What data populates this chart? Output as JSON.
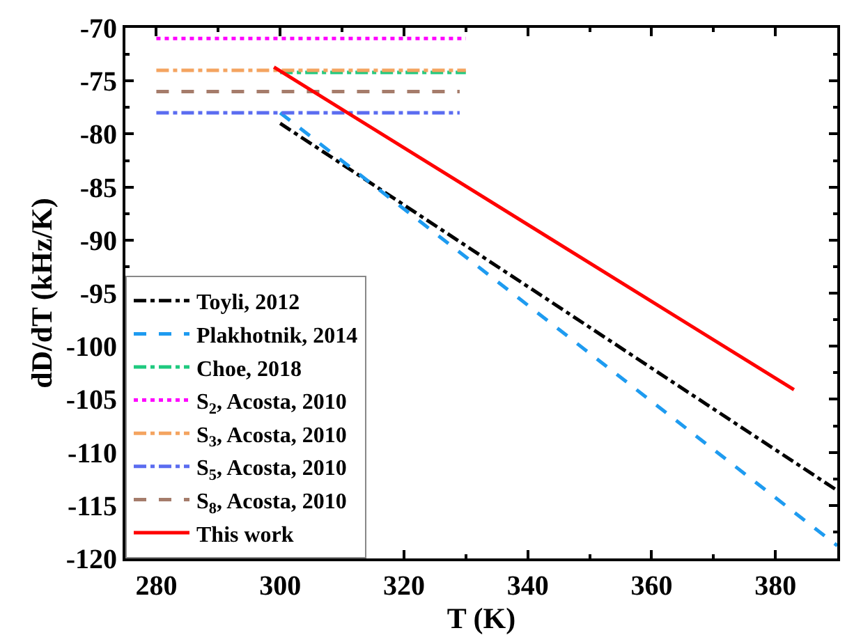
{
  "chart_data": {
    "type": "line",
    "xlabel": "T (K)",
    "ylabel": "dD/dT (kHz/K)",
    "xlim": [
      275,
      390
    ],
    "xticks": [
      280,
      300,
      320,
      340,
      360,
      380
    ],
    "ylim": [
      -120,
      -70
    ],
    "yticks": [
      -120,
      -115,
      -110,
      -105,
      -100,
      -95,
      -90,
      -85,
      -80,
      -75,
      -70
    ],
    "legend": "bottom left",
    "marker": "none",
    "series": [
      {
        "name": "Toyli, 2012",
        "color": "#000000",
        "line_style": "dashdot",
        "x": [
          300,
          390
        ],
        "values": [
          -79.0,
          -113.6
        ]
      },
      {
        "name": "Plakhotnik, 2014",
        "color": "#1e9bf0",
        "line_style": "dashed",
        "x": [
          300,
          390
        ],
        "values": [
          -78.0,
          -118.8
        ]
      },
      {
        "name": "Choe, 2018",
        "color": "#1fc97f",
        "line_style": "dashdot",
        "x": [
          300,
          330
        ],
        "values": [
          -74.2,
          -74.2
        ]
      },
      {
        "name": "S$_{2}$, Acosta, 2010",
        "color": "#ff00ff",
        "line_style": "dotted",
        "x": [
          280,
          330
        ],
        "values": [
          -71.0,
          -71.0
        ]
      },
      {
        "name": "S$_{3}$, Acosta, 2010",
        "color": "#f4a460",
        "line_style": "dashdot",
        "x": [
          280,
          330
        ],
        "values": [
          -74.0,
          -74.0
        ]
      },
      {
        "name": "S$_{5}$, Acosta, 2010",
        "color": "#5b6cf0",
        "line_style": "dashdot",
        "x": [
          280,
          329
        ],
        "values": [
          -78.0,
          -78.0
        ]
      },
      {
        "name": "S$_{8}$, Acosta, 2010",
        "color": "#a57c6b",
        "line_style": "dashed",
        "x": [
          280,
          329
        ],
        "values": [
          -76.0,
          -76.0
        ]
      },
      {
        "name": "This work",
        "color": "#ff0000",
        "line_style": "solid",
        "x": [
          299,
          383
        ],
        "values": [
          -73.7,
          -104.1
        ]
      }
    ]
  }
}
